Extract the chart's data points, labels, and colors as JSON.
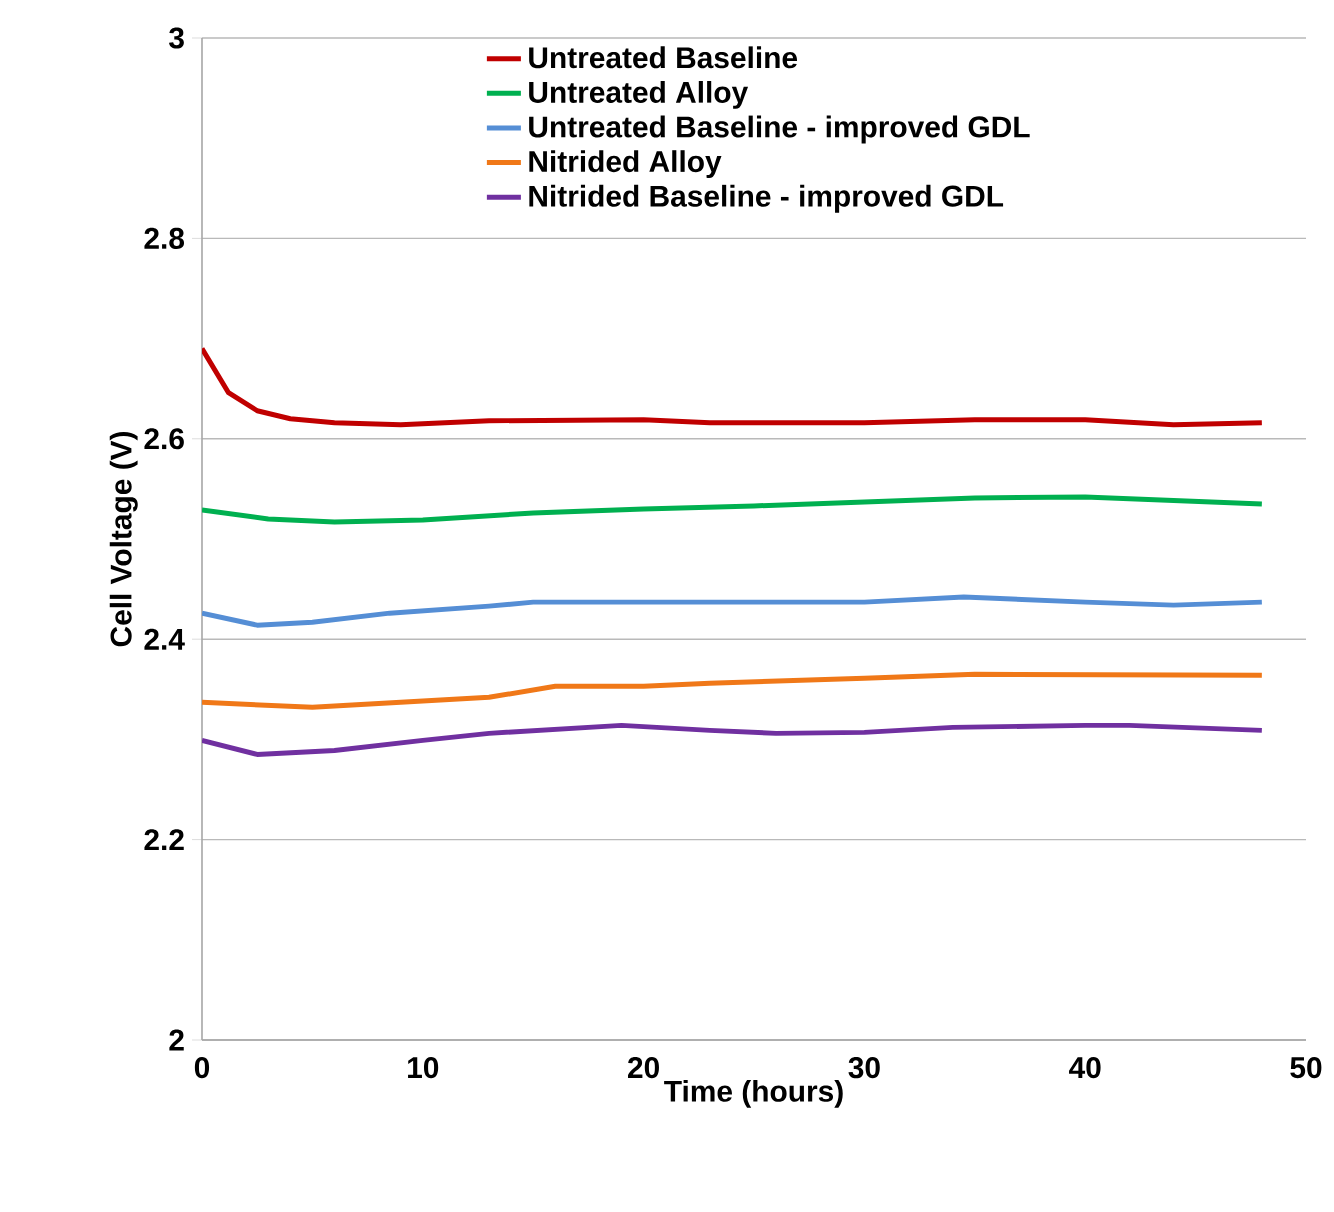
{
  "chart_data": {
    "type": "line",
    "xlabel": "Time (hours)",
    "ylabel": "Cell Voltage (V)",
    "xlim": [
      0,
      50
    ],
    "ylim": [
      2,
      3
    ],
    "xticks": [
      0,
      10,
      20,
      30,
      40,
      50
    ],
    "yticks": [
      2,
      2.2,
      2.4,
      2.6,
      2.8,
      3
    ],
    "grid": "y",
    "legend": "top right",
    "marker": "none",
    "line_style": "solid",
    "series": [
      {
        "name": "Untreated Baseline",
        "color": "#c00000",
        "x": [
          0,
          1.2,
          2.5,
          4,
          6,
          9,
          13,
          20,
          23,
          30,
          35,
          40,
          44,
          48
        ],
        "values": [
          2.69,
          2.646,
          2.628,
          2.62,
          2.616,
          2.614,
          2.618,
          2.619,
          2.616,
          2.616,
          2.619,
          2.619,
          2.614,
          2.616
        ]
      },
      {
        "name": "Untreated Alloy",
        "color": "#00b050",
        "x": [
          0,
          3,
          6,
          10,
          15,
          20,
          25,
          30,
          35,
          40,
          48
        ],
        "values": [
          2.529,
          2.52,
          2.517,
          2.519,
          2.526,
          2.53,
          2.533,
          2.537,
          2.541,
          2.542,
          2.535
        ]
      },
      {
        "name": "Untreated Baseline - improved GDL",
        "color": "#558ed5",
        "x": [
          0,
          2.5,
          5,
          8.5,
          13,
          15,
          30,
          34.5,
          40,
          44,
          48
        ],
        "values": [
          2.426,
          2.414,
          2.417,
          2.426,
          2.433,
          2.437,
          2.437,
          2.442,
          2.437,
          2.434,
          2.437
        ]
      },
      {
        "name": "Nitrided Alloy",
        "color": "#f07818",
        "x": [
          0,
          5,
          9,
          13,
          16,
          20,
          23,
          30,
          35,
          48
        ],
        "values": [
          2.337,
          2.332,
          2.337,
          2.342,
          2.353,
          2.353,
          2.356,
          2.361,
          2.365,
          2.364
        ]
      },
      {
        "name": "Nitrided Baseline - improved GDL",
        "color": "#7030a0",
        "x": [
          0,
          2.5,
          6,
          10,
          13,
          19,
          23,
          26,
          30,
          34,
          40,
          42,
          48
        ],
        "values": [
          2.299,
          2.285,
          2.289,
          2.299,
          2.306,
          2.314,
          2.309,
          2.306,
          2.307,
          2.312,
          2.314,
          2.314,
          2.309
        ]
      }
    ]
  }
}
